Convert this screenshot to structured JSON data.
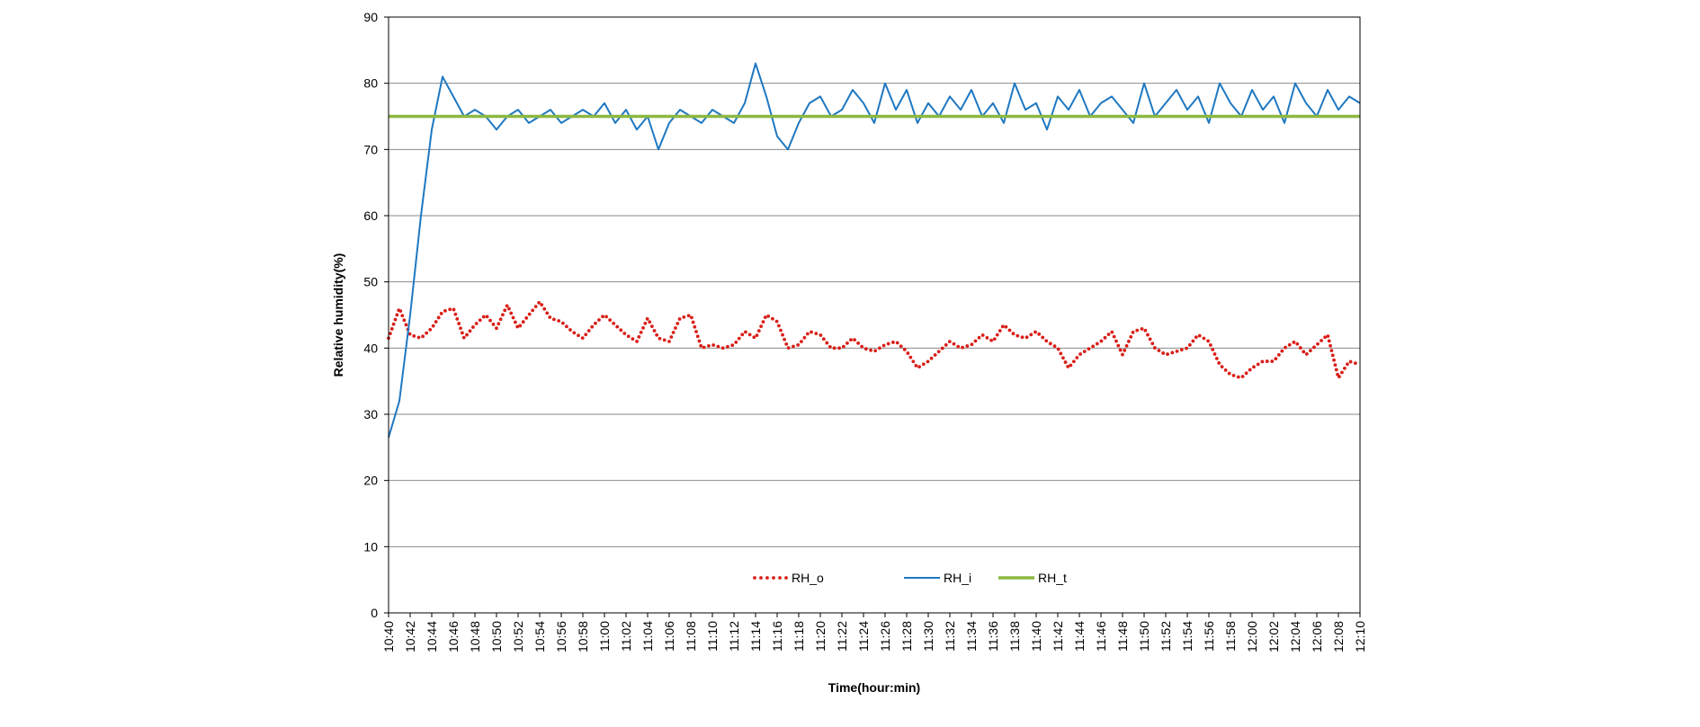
{
  "chart_data": {
    "type": "line",
    "title": "",
    "xlabel": "Time(hour:min)",
    "ylabel": "Relative humidity(%)",
    "ylim": [
      0,
      90
    ],
    "yticks": [
      0,
      10,
      20,
      30,
      40,
      50,
      60,
      70,
      80,
      90
    ],
    "x_range": [
      "10:40",
      "12:10"
    ],
    "x_ticks": [
      "10:40",
      "10:42",
      "10:44",
      "10:46",
      "10:48",
      "10:50",
      "10:52",
      "10:54",
      "10:56",
      "10:58",
      "11:00",
      "11:02",
      "11:04",
      "11:06",
      "11:08",
      "11:10",
      "11:12",
      "11:14",
      "11:16",
      "11:18",
      "11:20",
      "11:22",
      "11:24",
      "11:26",
      "11:28",
      "11:30",
      "11:32",
      "11:34",
      "11:36",
      "11:38",
      "11:40",
      "11:42",
      "11:44",
      "11:46",
      "11:48",
      "11:50",
      "11:52",
      "11:54",
      "11:56",
      "11:58",
      "12:00",
      "12:02",
      "12:04",
      "12:06",
      "12:08",
      "12:10"
    ],
    "grid": "horizontal",
    "legend_position": "bottom-center",
    "series": [
      {
        "name": "RH_o",
        "style": "dotted",
        "color": "#d91e18",
        "x": [
          "10:40",
          "10:41",
          "10:42",
          "10:43",
          "10:44",
          "10:45",
          "10:46",
          "10:47",
          "10:48",
          "10:49",
          "10:50",
          "10:51",
          "10:52",
          "10:53",
          "10:54",
          "10:55",
          "10:56",
          "10:57",
          "10:58",
          "10:59",
          "11:00",
          "11:01",
          "11:02",
          "11:03",
          "11:04",
          "11:05",
          "11:06",
          "11:07",
          "11:08",
          "11:09",
          "11:10",
          "11:11",
          "11:12",
          "11:13",
          "11:14",
          "11:15",
          "11:16",
          "11:17",
          "11:18",
          "11:19",
          "11:20",
          "11:21",
          "11:22",
          "11:23",
          "11:24",
          "11:25",
          "11:26",
          "11:27",
          "11:28",
          "11:29",
          "11:30",
          "11:31",
          "11:32",
          "11:33",
          "11:34",
          "11:35",
          "11:36",
          "11:37",
          "11:38",
          "11:39",
          "11:40",
          "11:41",
          "11:42",
          "11:43",
          "11:44",
          "11:45",
          "11:46",
          "11:47",
          "11:48",
          "11:49",
          "11:50",
          "11:51",
          "11:52",
          "11:53",
          "11:54",
          "11:55",
          "11:56",
          "11:57",
          "11:58",
          "11:59",
          "12:00",
          "12:01",
          "12:02",
          "12:03",
          "12:04",
          "12:05",
          "12:06",
          "12:07",
          "12:08",
          "12:09",
          "12:10"
        ],
        "values": [
          41.5,
          46,
          42,
          41.5,
          43,
          45.5,
          46,
          41.5,
          43.5,
          45,
          43,
          46.5,
          43,
          45,
          47,
          44.5,
          44,
          42.5,
          41.5,
          43.5,
          45,
          43.5,
          42,
          41,
          44.5,
          41.5,
          41,
          44.5,
          45,
          40,
          40.5,
          40,
          40.5,
          42.5,
          41.5,
          45,
          44,
          40,
          40.5,
          42.5,
          42,
          40,
          40,
          41.5,
          40,
          39.5,
          40.5,
          41,
          39.5,
          37,
          38,
          39.5,
          41,
          40,
          40.5,
          42,
          41,
          43.5,
          42,
          41.5,
          42.5,
          41,
          40,
          37,
          39,
          40,
          41,
          42.5,
          39,
          42.5,
          43,
          40,
          39,
          39.5,
          40,
          42,
          41,
          37.5,
          36,
          35.5,
          37,
          38,
          38,
          40,
          41,
          39,
          40.5,
          42,
          35.5,
          38,
          37.5
        ]
      },
      {
        "name": "RH_i",
        "style": "solid",
        "color": "#1f78c1",
        "x": [
          "10:40",
          "10:41",
          "10:42",
          "10:43",
          "10:44",
          "10:45",
          "10:46",
          "10:47",
          "10:48",
          "10:49",
          "10:50",
          "10:51",
          "10:52",
          "10:53",
          "10:54",
          "10:55",
          "10:56",
          "10:57",
          "10:58",
          "10:59",
          "11:00",
          "11:01",
          "11:02",
          "11:03",
          "11:04",
          "11:05",
          "11:06",
          "11:07",
          "11:08",
          "11:09",
          "11:10",
          "11:11",
          "11:12",
          "11:13",
          "11:14",
          "11:15",
          "11:16",
          "11:17",
          "11:18",
          "11:19",
          "11:20",
          "11:21",
          "11:22",
          "11:23",
          "11:24",
          "11:25",
          "11:26",
          "11:27",
          "11:28",
          "11:29",
          "11:30",
          "11:31",
          "11:32",
          "11:33",
          "11:34",
          "11:35",
          "11:36",
          "11:37",
          "11:38",
          "11:39",
          "11:40",
          "11:41",
          "11:42",
          "11:43",
          "11:44",
          "11:45",
          "11:46",
          "11:47",
          "11:48",
          "11:49",
          "11:50",
          "11:51",
          "11:52",
          "11:53",
          "11:54",
          "11:55",
          "11:56",
          "11:57",
          "11:58",
          "11:59",
          "12:00",
          "12:01",
          "12:02",
          "12:03",
          "12:04",
          "12:05",
          "12:06",
          "12:07",
          "12:08",
          "12:09",
          "12:10"
        ],
        "values": [
          26.5,
          32,
          45,
          60,
          73,
          81,
          78,
          75,
          76,
          75,
          73,
          75,
          76,
          74,
          75,
          76,
          74,
          75,
          76,
          75,
          77,
          74,
          76,
          73,
          75,
          70,
          74,
          76,
          75,
          74,
          76,
          75,
          74,
          77,
          83,
          78,
          72,
          70,
          74,
          77,
          78,
          75,
          76,
          79,
          77,
          74,
          80,
          76,
          79,
          74,
          77,
          75,
          78,
          76,
          79,
          75,
          77,
          74,
          80,
          76,
          77,
          73,
          78,
          76,
          79,
          75,
          77,
          78,
          76,
          74,
          80,
          75,
          77,
          79,
          76,
          78,
          74,
          80,
          77,
          75,
          79,
          76,
          78,
          74,
          80,
          77,
          75,
          79,
          76,
          78,
          77
        ]
      },
      {
        "name": "RH_t",
        "style": "solid-thick",
        "color": "#8cb841",
        "x": [
          "10:40",
          "12:10"
        ],
        "values": [
          75,
          75
        ]
      }
    ]
  }
}
